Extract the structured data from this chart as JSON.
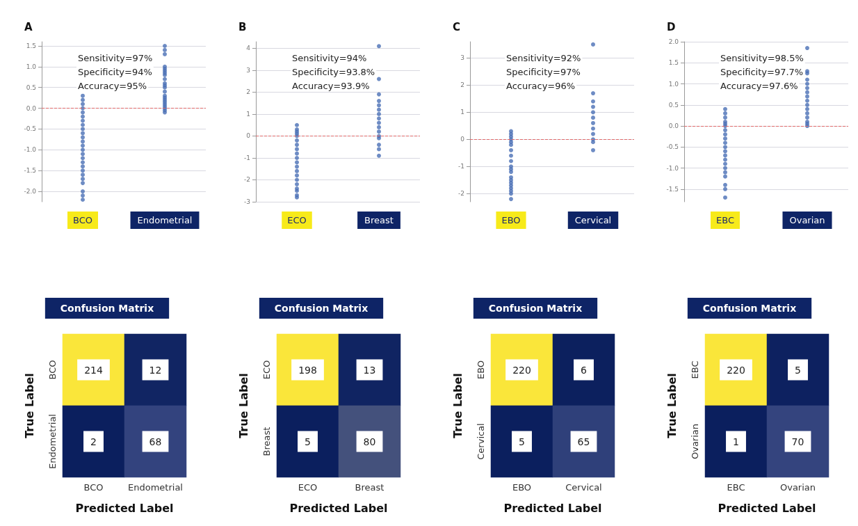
{
  "chart_data": [
    {
      "type": "scatter",
      "title": "A",
      "categories": [
        "BCO",
        "Endometrial"
      ],
      "annotations": [
        "Sensitivity=97%",
        "Specificity=94%",
        "Accuracy=95%"
      ],
      "ylim": [
        -2.25,
        1.6
      ],
      "yticks": [
        {
          "value": -2,
          "label": "-2.0"
        },
        -1.5,
        {
          "value": -1,
          "label": "-1.0"
        },
        -0.5,
        {
          "value": 0,
          "label": "0.0"
        },
        0.5,
        {
          "value": 1,
          "label": "1.0"
        },
        1.5
      ],
      "grid": "y",
      "marker": "circle",
      "ref_lines": [
        {
          "axis": "y",
          "value": 0,
          "color": "#e06a6a",
          "line_style": "dashed"
        }
      ],
      "series": [
        {
          "color": "#4a6fb5",
          "x": [
            "BCO",
            "BCO",
            "BCO",
            "BCO",
            "BCO",
            "BCO",
            "BCO",
            "BCO",
            "BCO",
            "BCO",
            "BCO",
            "BCO",
            "BCO",
            "BCO",
            "BCO",
            "BCO",
            "BCO",
            "BCO",
            "BCO",
            "BCO",
            "BCO",
            "BCO",
            "BCO",
            "BCO",
            "BCO"
          ],
          "values": [
            0.3,
            0.2,
            0.1,
            0.0,
            -0.1,
            -0.2,
            -0.3,
            -0.4,
            -0.5,
            -0.6,
            -0.7,
            -0.8,
            -0.9,
            -1.0,
            -1.1,
            -1.2,
            -1.3,
            -1.4,
            -1.5,
            -1.6,
            -1.7,
            -1.8,
            -2.0,
            -2.1,
            -2.2
          ]
        },
        {
          "color": "#4a6fb5",
          "x": [
            "Endometrial",
            "Endometrial",
            "Endometrial",
            "Endometrial",
            "Endometrial",
            "Endometrial",
            "Endometrial",
            "Endometrial",
            "Endometrial",
            "Endometrial",
            "Endometrial",
            "Endometrial",
            "Endometrial",
            "Endometrial",
            "Endometrial",
            "Endometrial",
            "Endometrial",
            "Endometrial",
            "Endometrial",
            "Endometrial",
            "Endometrial",
            "Endometrial"
          ],
          "values": [
            1.5,
            1.4,
            1.3,
            1.0,
            0.95,
            0.9,
            0.85,
            0.8,
            0.7,
            0.6,
            0.55,
            0.5,
            0.4,
            0.3,
            0.25,
            0.2,
            0.15,
            0.1,
            0.05,
            0.0,
            -0.05,
            -0.1
          ]
        }
      ]
    },
    {
      "type": "scatter",
      "title": "B",
      "categories": [
        "ECO",
        "Breast"
      ],
      "annotations": [
        "Sensitivity=94%",
        "Specificity=93.8%",
        "Accuracy=93.9%"
      ],
      "ylim": [
        -3,
        4.3
      ],
      "yticks": [
        -3,
        -2,
        -1,
        0,
        1,
        2,
        3,
        4
      ],
      "grid": "y",
      "marker": "circle",
      "ref_lines": [
        {
          "axis": "y",
          "value": 0,
          "color": "#e06a6a",
          "line_style": "dashed"
        }
      ],
      "series": [
        {
          "color": "#4a6fb5",
          "x": [
            "ECO",
            "ECO",
            "ECO",
            "ECO",
            "ECO",
            "ECO",
            "ECO",
            "ECO",
            "ECO",
            "ECO",
            "ECO",
            "ECO",
            "ECO",
            "ECO",
            "ECO",
            "ECO",
            "ECO",
            "ECO",
            "ECO",
            "ECO"
          ],
          "values": [
            0.5,
            0.3,
            0.2,
            0.1,
            0.0,
            -0.2,
            -0.4,
            -0.6,
            -0.8,
            -1.0,
            -1.2,
            -1.4,
            -1.6,
            -1.8,
            -2.0,
            -2.2,
            -2.4,
            -2.5,
            -2.7,
            -2.8
          ]
        },
        {
          "color": "#4a6fb5",
          "x": [
            "Breast",
            "Breast",
            "Breast",
            "Breast",
            "Breast",
            "Breast",
            "Breast",
            "Breast",
            "Breast",
            "Breast",
            "Breast",
            "Breast",
            "Breast",
            "Breast",
            "Breast",
            "Breast"
          ],
          "values": [
            4.1,
            2.6,
            1.9,
            1.6,
            1.4,
            1.2,
            1.0,
            0.8,
            0.6,
            0.4,
            0.2,
            0.0,
            -0.1,
            -0.4,
            -0.6,
            -0.9
          ]
        }
      ]
    },
    {
      "type": "scatter",
      "title": "C",
      "categories": [
        "EBO",
        "Cervical"
      ],
      "annotations": [
        "Sensitivity=92%",
        "Specificity=97%",
        "Accuracy=96%"
      ],
      "ylim": [
        -2.3,
        3.6
      ],
      "yticks": [
        -2,
        -1,
        0,
        1,
        2,
        3
      ],
      "grid": "y",
      "marker": "circle",
      "ref_lines": [
        {
          "axis": "y",
          "value": 0,
          "color": "#e06a6a",
          "line_style": "dashed"
        }
      ],
      "series": [
        {
          "color": "#4a6fb5",
          "x": [
            "EBO",
            "EBO",
            "EBO",
            "EBO",
            "EBO",
            "EBO",
            "EBO",
            "EBO",
            "EBO",
            "EBO",
            "EBO",
            "EBO",
            "EBO",
            "EBO",
            "EBO",
            "EBO",
            "EBO",
            "EBO",
            "EBO",
            "EBO"
          ],
          "values": [
            0.3,
            0.2,
            0.1,
            0.0,
            -0.1,
            -0.2,
            -0.4,
            -0.6,
            -0.8,
            -1.0,
            -1.1,
            -1.2,
            -1.4,
            -1.5,
            -1.6,
            -1.7,
            -1.8,
            -1.9,
            -2.0,
            -2.2
          ]
        },
        {
          "color": "#4a6fb5",
          "x": [
            "Cervical",
            "Cervical",
            "Cervical",
            "Cervical",
            "Cervical",
            "Cervical",
            "Cervical",
            "Cervical",
            "Cervical",
            "Cervical",
            "Cervical",
            "Cervical"
          ],
          "values": [
            3.5,
            1.7,
            1.4,
            1.2,
            1.0,
            0.8,
            0.6,
            0.4,
            0.2,
            0.0,
            -0.1,
            -0.4
          ]
        }
      ]
    },
    {
      "type": "scatter",
      "title": "D",
      "categories": [
        "EBC",
        "Ovarian"
      ],
      "annotations": [
        "Sensitivity=98.5%",
        "Specificity=97.7%",
        "Accuracy=97.6%"
      ],
      "ylim": [
        -1.8,
        2.0
      ],
      "yticks": [
        -1.5,
        {
          "value": -1,
          "label": "-1.0"
        },
        -0.5,
        {
          "value": 0,
          "label": "0.0"
        },
        0.5,
        {
          "value": 1,
          "label": "1.0"
        },
        1.5,
        {
          "value": 2,
          "label": "2.0"
        }
      ],
      "grid": "y",
      "marker": "circle",
      "ref_lines": [
        {
          "axis": "y",
          "value": 0,
          "color": "#e06a6a",
          "line_style": "dashed"
        }
      ],
      "series": [
        {
          "color": "#4a6fb5",
          "x": [
            "EBC",
            "EBC",
            "EBC",
            "EBC",
            "EBC",
            "EBC",
            "EBC",
            "EBC",
            "EBC",
            "EBC",
            "EBC",
            "EBC",
            "EBC",
            "EBC",
            "EBC",
            "EBC",
            "EBC",
            "EBC",
            "EBC",
            "EBC",
            "EBC"
          ],
          "values": [
            0.4,
            0.3,
            0.2,
            0.1,
            0.05,
            0.0,
            -0.1,
            -0.2,
            -0.3,
            -0.4,
            -0.5,
            -0.6,
            -0.7,
            -0.8,
            -0.9,
            -1.0,
            -1.1,
            -1.2,
            -1.4,
            -1.5,
            -1.7
          ]
        },
        {
          "color": "#4a6fb5",
          "x": [
            "Ovarian",
            "Ovarian",
            "Ovarian",
            "Ovarian",
            "Ovarian",
            "Ovarian",
            "Ovarian",
            "Ovarian",
            "Ovarian",
            "Ovarian",
            "Ovarian",
            "Ovarian",
            "Ovarian",
            "Ovarian",
            "Ovarian",
            "Ovarian"
          ],
          "values": [
            1.85,
            1.3,
            1.25,
            1.1,
            1.0,
            0.9,
            0.8,
            0.7,
            0.6,
            0.5,
            0.4,
            0.3,
            0.2,
            0.1,
            0.05,
            0.0
          ]
        }
      ]
    },
    {
      "type": "heatmap",
      "title": "Confusion Matrix",
      "xlabel": "Predicted Label",
      "ylabel": "True Label",
      "categories": [
        "BCO",
        "Endometrial"
      ],
      "y_categories": [
        "BCO",
        "Endometrial"
      ],
      "cells": [
        [
          214,
          12
        ],
        [
          2,
          68
        ]
      ],
      "data_labels": true
    },
    {
      "type": "heatmap",
      "title": "Confusion Matrix",
      "xlabel": "Predicted Label",
      "ylabel": "True Label",
      "categories": [
        "ECO",
        "Breast"
      ],
      "y_categories": [
        "ECO",
        "Breast"
      ],
      "cells": [
        [
          198,
          13
        ],
        [
          5,
          80
        ]
      ],
      "data_labels": true
    },
    {
      "type": "heatmap",
      "title": "Confusion Matrix",
      "xlabel": "Predicted Label",
      "ylabel": "True Label",
      "categories": [
        "EBO",
        "Cervical"
      ],
      "y_categories": [
        "EBO",
        "Cervical"
      ],
      "cells": [
        [
          220,
          6
        ],
        [
          5,
          65
        ]
      ],
      "data_labels": true
    },
    {
      "type": "heatmap",
      "title": "Confusion Matrix",
      "xlabel": "Predicted Label",
      "ylabel": "True Label",
      "categories": [
        "EBC",
        "Ovarian"
      ],
      "y_categories": [
        "EBC",
        "Ovarian"
      ],
      "cells": [
        [
          220,
          5
        ],
        [
          1,
          70
        ]
      ],
      "data_labels": true
    }
  ]
}
